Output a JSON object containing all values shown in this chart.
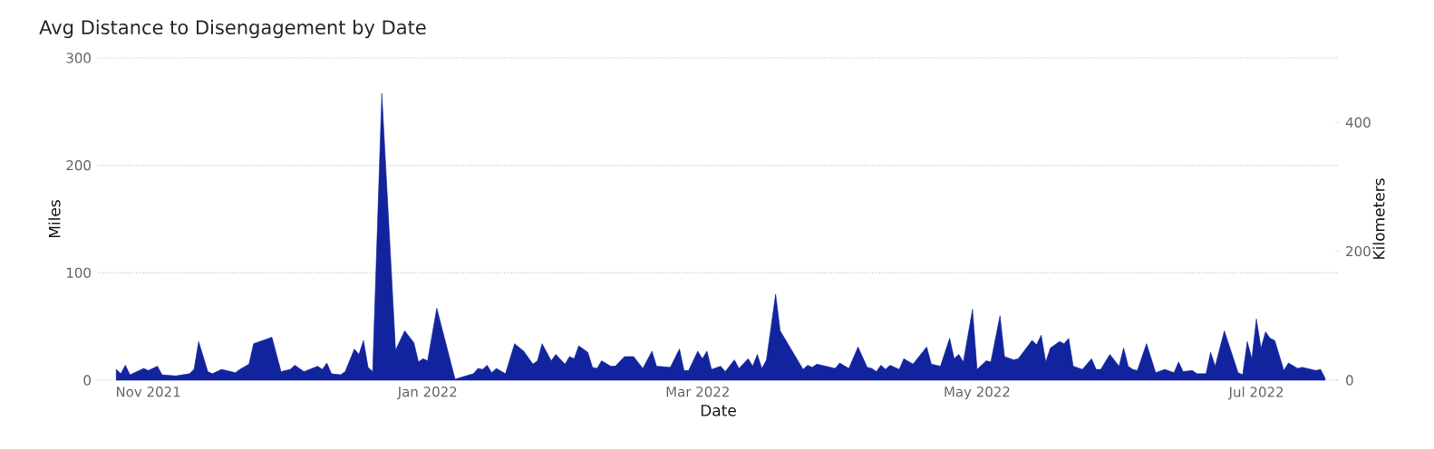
{
  "chart_data": {
    "type": "area",
    "title": "Avg Distance to Disengagement by Date",
    "xlabel": "Date",
    "ylabel": "Miles",
    "y2label": "Kilometers",
    "xlim": [
      "2021-10-21",
      "2022-07-19"
    ],
    "xticks": [
      {
        "value": "2021-11-01",
        "label": "Nov 2021"
      },
      {
        "value": "2022-01-01",
        "label": "Jan 2022"
      },
      {
        "value": "2022-03-01",
        "label": "Mar 2022"
      },
      {
        "value": "2022-05-01",
        "label": "May 2022"
      },
      {
        "value": "2022-07-01",
        "label": "Jul 2022"
      }
    ],
    "ylim": [
      0,
      300
    ],
    "yticks": [
      0,
      100,
      200,
      300
    ],
    "y2lim": [
      0,
      500
    ],
    "y2ticks": [
      0,
      200,
      400
    ],
    "grid": "y",
    "series": [
      {
        "color": "#12239e",
        "x": [
          "2021-10-25",
          "2021-10-26",
          "2021-10-27",
          "2021-10-28",
          "2021-10-31",
          "2021-11-01",
          "2021-11-03",
          "2021-11-04",
          "2021-11-07",
          "2021-11-10",
          "2021-11-11",
          "2021-11-12",
          "2021-11-14",
          "2021-11-15",
          "2021-11-17",
          "2021-11-20",
          "2021-11-21",
          "2021-11-23",
          "2021-11-24",
          "2021-11-28",
          "2021-11-30",
          "2021-12-02",
          "2021-12-03",
          "2021-12-05",
          "2021-12-08",
          "2021-12-09",
          "2021-12-10",
          "2021-12-11",
          "2021-12-13",
          "2021-12-14",
          "2021-12-16",
          "2021-12-17",
          "2021-12-18",
          "2021-12-19",
          "2021-12-20",
          "2021-12-22",
          "2021-12-25",
          "2021-12-27",
          "2021-12-29",
          "2021-12-30",
          "2021-12-31",
          "2022-01-01",
          "2022-01-03",
          "2022-01-07",
          "2022-01-11",
          "2022-01-12",
          "2022-01-13",
          "2022-01-14",
          "2022-01-15",
          "2022-01-16",
          "2022-01-18",
          "2022-01-20",
          "2022-01-22",
          "2022-01-24",
          "2022-01-25",
          "2022-01-26",
          "2022-01-28",
          "2022-01-29",
          "2022-01-31",
          "2022-02-01",
          "2022-02-02",
          "2022-02-03",
          "2022-02-05",
          "2022-02-06",
          "2022-02-07",
          "2022-02-08",
          "2022-02-10",
          "2022-02-11",
          "2022-02-13",
          "2022-02-15",
          "2022-02-17",
          "2022-02-19",
          "2022-02-20",
          "2022-02-23",
          "2022-02-25",
          "2022-02-26",
          "2022-02-27",
          "2022-03-01",
          "2022-03-02",
          "2022-03-03",
          "2022-03-04",
          "2022-03-06",
          "2022-03-07",
          "2022-03-09",
          "2022-03-10",
          "2022-03-12",
          "2022-03-13",
          "2022-03-14",
          "2022-03-15",
          "2022-03-16",
          "2022-03-18",
          "2022-03-19",
          "2022-03-24",
          "2022-03-25",
          "2022-03-26",
          "2022-03-27",
          "2022-03-30",
          "2022-03-31",
          "2022-04-01",
          "2022-04-03",
          "2022-04-05",
          "2022-04-07",
          "2022-04-08",
          "2022-04-09",
          "2022-04-10",
          "2022-04-11",
          "2022-04-12",
          "2022-04-14",
          "2022-04-15",
          "2022-04-17",
          "2022-04-20",
          "2022-04-21",
          "2022-04-23",
          "2022-04-25",
          "2022-04-26",
          "2022-04-27",
          "2022-04-28",
          "2022-04-30",
          "2022-05-01",
          "2022-05-03",
          "2022-05-04",
          "2022-05-06",
          "2022-05-07",
          "2022-05-09",
          "2022-05-10",
          "2022-05-13",
          "2022-05-14",
          "2022-05-15",
          "2022-05-16",
          "2022-05-17",
          "2022-05-19",
          "2022-05-20",
          "2022-05-21",
          "2022-05-22",
          "2022-05-24",
          "2022-05-26",
          "2022-05-27",
          "2022-05-28",
          "2022-05-30",
          "2022-06-01",
          "2022-06-02",
          "2022-06-03",
          "2022-06-04",
          "2022-06-05",
          "2022-06-07",
          "2022-06-09",
          "2022-06-11",
          "2022-06-13",
          "2022-06-14",
          "2022-06-15",
          "2022-06-17",
          "2022-06-18",
          "2022-06-20",
          "2022-06-21",
          "2022-06-22",
          "2022-06-24",
          "2022-06-27",
          "2022-06-28",
          "2022-06-29",
          "2022-06-30",
          "2022-07-01",
          "2022-07-02",
          "2022-07-03",
          "2022-07-04",
          "2022-07-05",
          "2022-07-07",
          "2022-07-08",
          "2022-07-10",
          "2022-07-11",
          "2022-07-14",
          "2022-07-15",
          "2022-07-16"
        ],
        "values": [
          10,
          6,
          14,
          5,
          11,
          9,
          13,
          5,
          4,
          6,
          10,
          36,
          8,
          6,
          10,
          7,
          10,
          15,
          34,
          40,
          8,
          10,
          14,
          8,
          13,
          10,
          16,
          6,
          5,
          8,
          29,
          24,
          37,
          12,
          8,
          267,
          28,
          46,
          35,
          17,
          20,
          18,
          67,
          1,
          6,
          11,
          10,
          14,
          7,
          11,
          6,
          34,
          27,
          15,
          18,
          34,
          18,
          24,
          15,
          22,
          20,
          32,
          26,
          12,
          11,
          18,
          13,
          13,
          22,
          22,
          11,
          27,
          13,
          12,
          29,
          9,
          9,
          27,
          20,
          27,
          10,
          13,
          8,
          19,
          11,
          20,
          13,
          24,
          11,
          19,
          80,
          46,
          10,
          14,
          12,
          15,
          12,
          11,
          16,
          11,
          31,
          12,
          11,
          8,
          14,
          10,
          14,
          10,
          20,
          15,
          31,
          15,
          13,
          39,
          20,
          24,
          17,
          66,
          10,
          18,
          17,
          60,
          22,
          19,
          20,
          37,
          33,
          42,
          17,
          30,
          36,
          34,
          39,
          13,
          10,
          20,
          10,
          10,
          24,
          13,
          30,
          13,
          10,
          9,
          34,
          7,
          10,
          7,
          17,
          8,
          9,
          6,
          6,
          26,
          13,
          46,
          7,
          5,
          36,
          20,
          57,
          30,
          45,
          39,
          37,
          9,
          16,
          11,
          12,
          9,
          10,
          2
        ]
      }
    ]
  }
}
